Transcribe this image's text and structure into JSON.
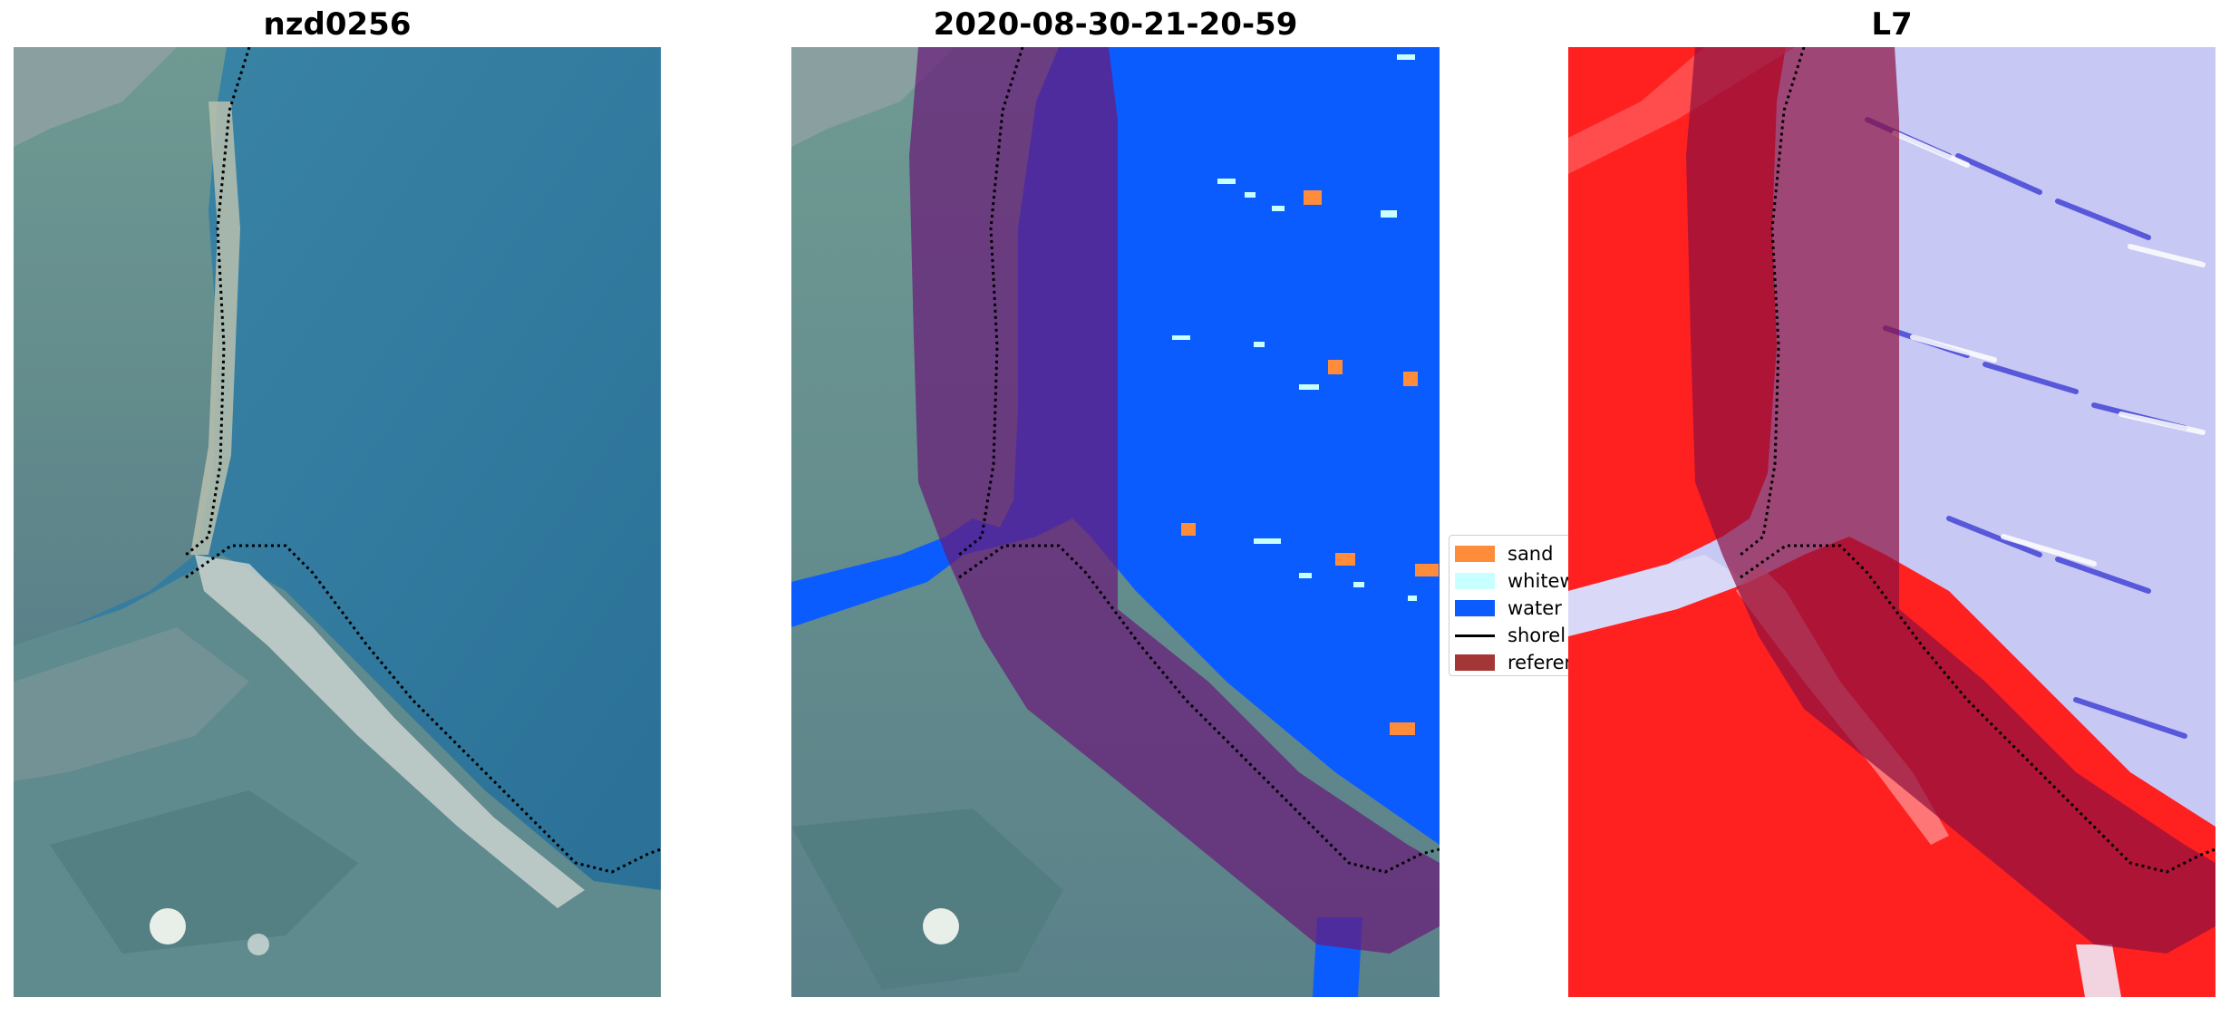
{
  "panels": [
    {
      "title": "nzd0256"
    },
    {
      "title": "2020-08-30-21-20-59"
    },
    {
      "title": "L7"
    }
  ],
  "legend": {
    "items": [
      {
        "label": "sand",
        "color": "#ff8c3a",
        "kind": "patch"
      },
      {
        "label": "whitew",
        "color": "#c8ffff",
        "kind": "patch"
      },
      {
        "label": "water",
        "color": "#0a5cff",
        "kind": "patch"
      },
      {
        "label": "shorel",
        "color": "#000000",
        "kind": "line"
      },
      {
        "label": "referen",
        "color": "#a33636",
        "kind": "patch"
      }
    ]
  },
  "colors": {
    "sea": "#2f7fa6",
    "land": "#5e8a8a",
    "water_class": "#0a5cff",
    "buffer": "#8b2a5a",
    "index_red": "#ff2020",
    "index_blue": "#c8c8f5"
  }
}
